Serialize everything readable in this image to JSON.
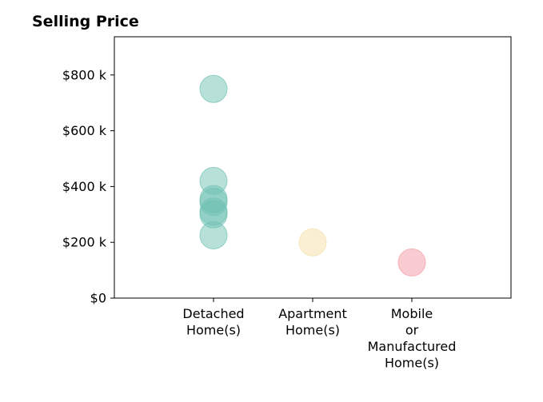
{
  "chart_data": {
    "type": "scatter",
    "title": "Selling Price",
    "xlabel": "",
    "ylabel": "",
    "categories": [
      [
        "Detached",
        "Home(s)"
      ],
      [
        "Apartment",
        "Home(s)"
      ],
      [
        "Mobile",
        "or",
        "Manufactured",
        "Home(s)"
      ]
    ],
    "y_ticks": [
      {
        "value": 0,
        "label": "$0"
      },
      {
        "value": 200000,
        "label": "$200 k"
      },
      {
        "value": 400000,
        "label": "$400 k"
      },
      {
        "value": 600000,
        "label": "$600 k"
      },
      {
        "value": 800000,
        "label": "$800 k"
      }
    ],
    "ylim": [
      0,
      937000
    ],
    "xlim": [
      -1,
      3
    ],
    "grid": false,
    "series": [
      {
        "color": "#6fc1b3",
        "points": [
          {
            "category": 0,
            "y": 750000
          },
          {
            "category": 0,
            "y": 420000
          },
          {
            "category": 0,
            "y": 355000
          },
          {
            "category": 0,
            "y": 345000
          },
          {
            "category": 0,
            "y": 310000
          },
          {
            "category": 0,
            "y": 300000
          },
          {
            "category": 0,
            "y": 225000
          }
        ]
      },
      {
        "color": "#f6e0a6",
        "points": [
          {
            "category": 1,
            "y": 200000
          }
        ]
      },
      {
        "color": "#f29aa3",
        "points": [
          {
            "category": 2,
            "y": 128000
          }
        ]
      }
    ]
  }
}
